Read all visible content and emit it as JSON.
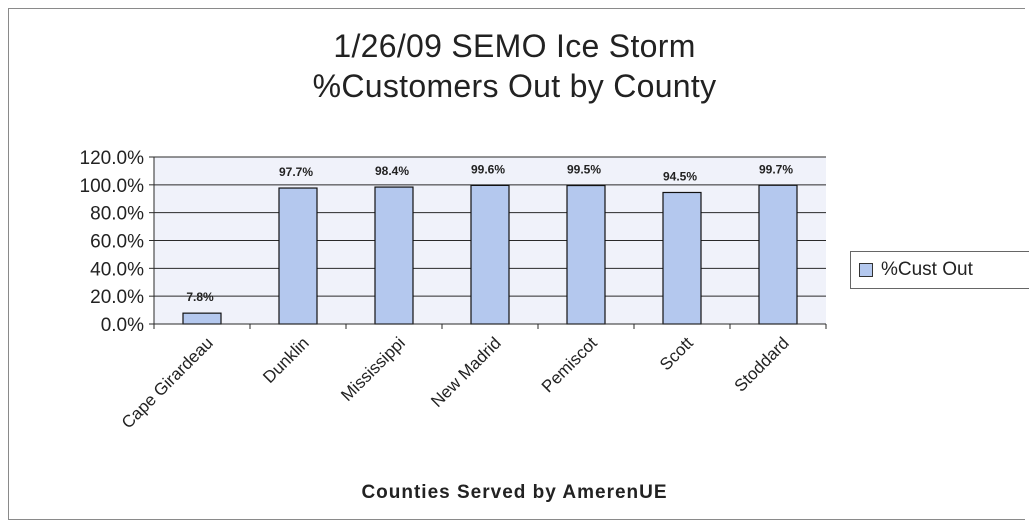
{
  "chart_data": {
    "type": "bar",
    "title": "1/26/09 SEMO Ice Storm",
    "subtitle": "%Customers Out by County",
    "xlabel": "Counties Served by AmerenUE",
    "ylabel": "",
    "categories": [
      "Cape Girardeau",
      "Dunklin",
      "Mississippi",
      "New Madrid",
      "Pemiscot",
      "Scott",
      "Stoddard"
    ],
    "series": [
      {
        "name": "%Cust Out",
        "values": [
          7.8,
          97.7,
          98.4,
          99.6,
          99.5,
          94.5,
          99.7
        ],
        "color": "#b4c8ee"
      }
    ],
    "data_labels": [
      "7.8%",
      "97.7%",
      "98.4%",
      "99.6%",
      "99.5%",
      "94.5%",
      "99.7%"
    ],
    "y_tick_labels": [
      "0.0%",
      "20.0%",
      "40.0%",
      "60.0%",
      "80.0%",
      "100.0%",
      "120.0%"
    ],
    "y_ticks": [
      0,
      20,
      40,
      60,
      80,
      100,
      120
    ],
    "ylim": [
      0,
      120
    ],
    "grid": true,
    "legend_position": "right",
    "plot_background": "#f0f2fa"
  }
}
